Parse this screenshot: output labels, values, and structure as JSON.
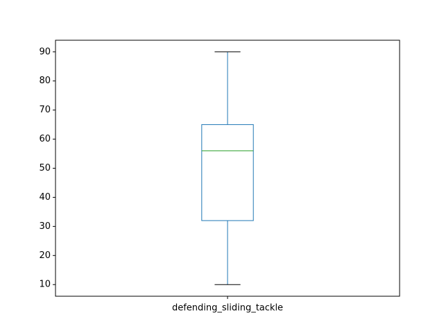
{
  "chart_data": {
    "type": "box",
    "categories": [
      "defending_sliding_tackle"
    ],
    "boxes": [
      {
        "category": "defending_sliding_tackle",
        "whisker_low": 10,
        "q1": 32,
        "median": 56,
        "q3": 65,
        "whisker_high": 90
      }
    ],
    "y_ticks": [
      10,
      20,
      30,
      40,
      50,
      60,
      70,
      80,
      90
    ],
    "ylim": [
      6,
      94
    ],
    "title": "",
    "xlabel": "",
    "ylabel": "",
    "grid": false,
    "colors": {
      "box": "#1f77b4",
      "median": "#2ca02c",
      "whisker_cap": "#000000",
      "axes": "#000000"
    }
  }
}
